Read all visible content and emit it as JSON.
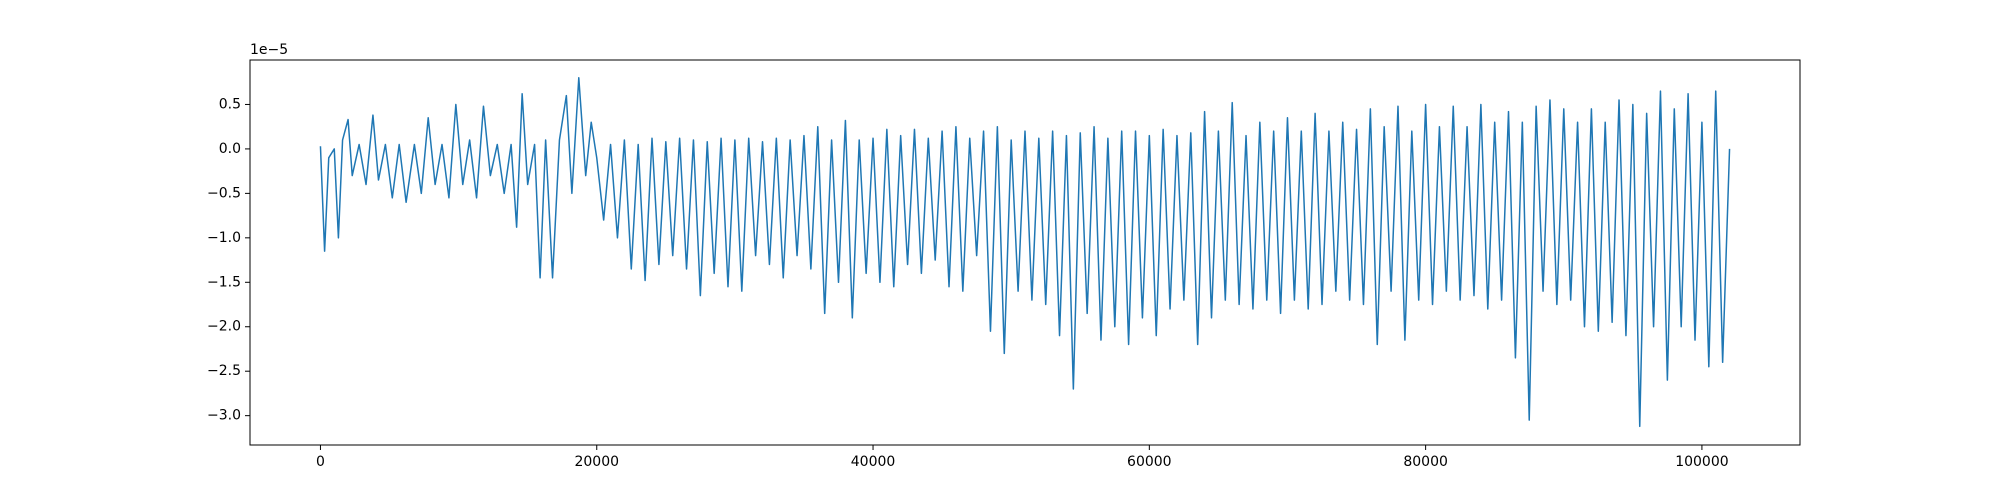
{
  "chart_data": {
    "type": "line",
    "offset_text": "1e−5",
    "color": "#1f77b4",
    "x": [
      0,
      300,
      600,
      1000,
      1300,
      1600,
      2000,
      2300,
      2800,
      3300,
      3800,
      4200,
      4700,
      5200,
      5700,
      6200,
      6800,
      7300,
      7800,
      8300,
      8800,
      9300,
      9800,
      10300,
      10800,
      11300,
      11800,
      12300,
      12800,
      13300,
      13800,
      14200,
      14600,
      15000,
      15500,
      15900,
      16300,
      16800,
      17300,
      17800,
      18200,
      18700,
      19200,
      19600,
      20000,
      20500,
      21000,
      21500,
      22000,
      22500,
      23000,
      23500,
      24000,
      24500,
      25000,
      25500,
      26000,
      26500,
      27000,
      27500,
      28000,
      28500,
      29000,
      29500,
      30000,
      30500,
      31000,
      31500,
      32000,
      32500,
      33000,
      33500,
      34000,
      34500,
      35000,
      35500,
      36000,
      36500,
      37000,
      37500,
      38000,
      38500,
      39000,
      39500,
      40000,
      40500,
      41000,
      41500,
      42000,
      42500,
      43000,
      43500,
      44000,
      44500,
      45000,
      45500,
      46000,
      46500,
      47000,
      47500,
      48000,
      48500,
      49000,
      49500,
      50000,
      50500,
      51000,
      51500,
      52000,
      52500,
      53000,
      53500,
      54000,
      54500,
      55000,
      55500,
      56000,
      56500,
      57000,
      57500,
      58000,
      58500,
      59000,
      59500,
      60000,
      60500,
      61000,
      61500,
      62000,
      62500,
      63000,
      63500,
      64000,
      64500,
      65000,
      65500,
      66000,
      66500,
      67000,
      67500,
      68000,
      68500,
      69000,
      69500,
      70000,
      70500,
      71000,
      71500,
      72000,
      72500,
      73000,
      73500,
      74000,
      74500,
      75000,
      75500,
      76000,
      76500,
      77000,
      77500,
      78000,
      78500,
      79000,
      79500,
      80000,
      80500,
      81000,
      81500,
      82000,
      82500,
      83000,
      83500,
      84000,
      84500,
      85000,
      85500,
      86000,
      86500,
      87000,
      87500,
      88000,
      88500,
      89000,
      89500,
      90000,
      90500,
      91000,
      91500,
      92000,
      92500,
      93000,
      93500,
      94000,
      94500,
      95000,
      95500,
      96000,
      96500,
      97000,
      97500,
      98000,
      98500,
      99000,
      99500,
      100000,
      100500,
      101000,
      101500,
      102000
    ],
    "values": [
      0.03,
      -1.15,
      -0.1,
      0.0,
      -1.0,
      0.1,
      0.33,
      -0.3,
      0.05,
      -0.4,
      0.38,
      -0.35,
      0.05,
      -0.55,
      0.05,
      -0.6,
      0.05,
      -0.5,
      0.35,
      -0.4,
      0.05,
      -0.55,
      0.5,
      -0.4,
      0.1,
      -0.55,
      0.48,
      -0.3,
      0.05,
      -0.5,
      0.05,
      -0.88,
      0.62,
      -0.4,
      0.05,
      -1.45,
      0.1,
      -1.45,
      0.1,
      0.6,
      -0.5,
      0.8,
      -0.3,
      0.3,
      -0.1,
      -0.8,
      0.05,
      -1.0,
      0.1,
      -1.35,
      0.05,
      -1.48,
      0.12,
      -1.3,
      0.08,
      -1.2,
      0.12,
      -1.35,
      0.1,
      -1.65,
      0.08,
      -1.4,
      0.12,
      -1.55,
      0.1,
      -1.6,
      0.12,
      -1.2,
      0.08,
      -1.3,
      0.12,
      -1.45,
      0.1,
      -1.2,
      0.15,
      -1.35,
      0.25,
      -1.85,
      0.1,
      -1.5,
      0.32,
      -1.9,
      0.1,
      -1.4,
      0.12,
      -1.5,
      0.22,
      -1.55,
      0.15,
      -1.3,
      0.22,
      -1.4,
      0.12,
      -1.25,
      0.2,
      -1.55,
      0.25,
      -1.6,
      0.12,
      -1.2,
      0.2,
      -2.05,
      0.25,
      -2.3,
      0.1,
      -1.6,
      0.2,
      -1.7,
      0.12,
      -1.75,
      0.2,
      -2.1,
      0.15,
      -2.7,
      0.18,
      -1.85,
      0.25,
      -2.15,
      0.12,
      -2.0,
      0.2,
      -2.2,
      0.2,
      -1.9,
      0.15,
      -2.1,
      0.22,
      -1.8,
      0.15,
      -1.7,
      0.18,
      -2.2,
      0.42,
      -1.9,
      0.2,
      -1.7,
      0.52,
      -1.75,
      0.15,
      -1.8,
      0.3,
      -1.7,
      0.2,
      -1.85,
      0.35,
      -1.7,
      0.2,
      -1.8,
      0.4,
      -1.75,
      0.2,
      -1.6,
      0.3,
      -1.7,
      0.22,
      -1.75,
      0.45,
      -2.2,
      0.25,
      -1.6,
      0.48,
      -2.15,
      0.2,
      -1.7,
      0.5,
      -1.75,
      0.25,
      -1.6,
      0.48,
      -1.7,
      0.25,
      -1.65,
      0.5,
      -1.8,
      0.3,
      -1.7,
      0.42,
      -2.35,
      0.3,
      -3.05,
      0.48,
      -1.6,
      0.55,
      -1.75,
      0.45,
      -1.7,
      0.3,
      -2.0,
      0.45,
      -2.05,
      0.3,
      -1.95,
      0.55,
      -2.1,
      0.5,
      -3.12,
      0.4,
      -2.0,
      0.65,
      -2.6,
      0.45,
      -2.0,
      0.62,
      -2.15,
      0.3,
      -2.45,
      0.65,
      -2.4,
      0.0
    ],
    "xlim": [
      -5100,
      107100
    ],
    "xticks": [
      0,
      20000,
      40000,
      60000,
      80000,
      100000
    ],
    "ylim": [
      -3.33,
      1.0
    ],
    "yticks": [
      0.5,
      {
        "value": 0,
        "label": "0.0"
      },
      {
        "value": -0.5,
        "label": "−0.5"
      },
      {
        "value": -1,
        "label": "−1.0"
      },
      {
        "value": -1.5,
        "label": "−1.5"
      },
      {
        "value": -2,
        "label": "−2.0"
      },
      {
        "value": -2.5,
        "label": "−2.5"
      },
      {
        "value": -3,
        "label": "−3.0"
      }
    ],
    "grid": false
  }
}
